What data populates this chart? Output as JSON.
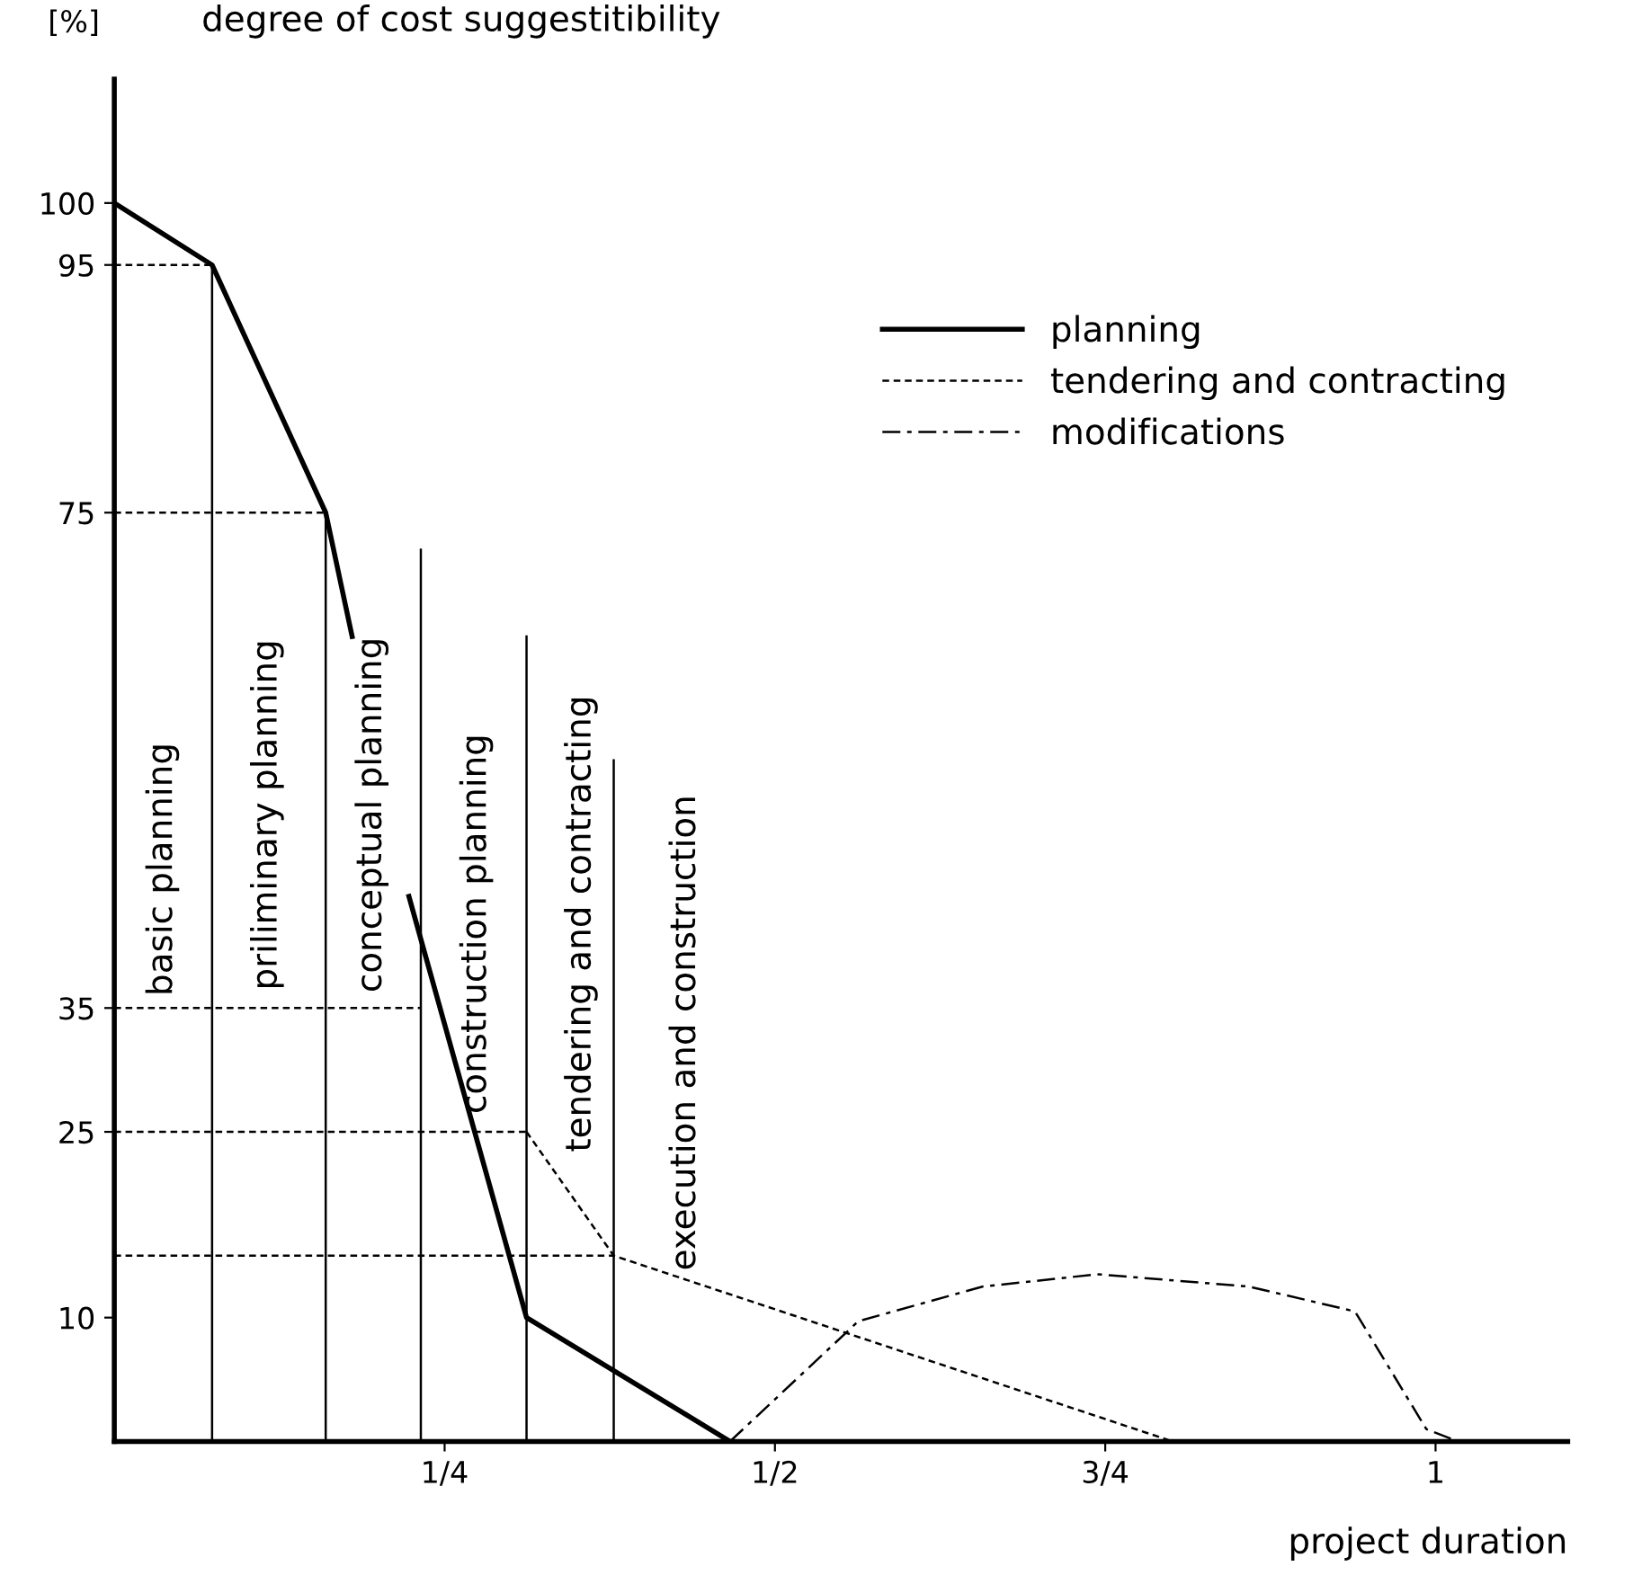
{
  "chart_data": {
    "type": "line",
    "title": "degree of cost suggestitibility",
    "ylabel": "[%]",
    "xlabel": "project duration",
    "xlim": [
      0,
      1.1
    ],
    "ylim": [
      0,
      110
    ],
    "xticks": [
      {
        "value": 0.25,
        "label": "1/4"
      },
      {
        "value": 0.5,
        "label": "1/2"
      },
      {
        "value": 0.75,
        "label": "3/4"
      },
      {
        "value": 1,
        "label": "1"
      }
    ],
    "yticks": [
      10,
      25,
      35,
      75,
      95,
      100
    ],
    "grid": false,
    "legend": "top right",
    "marker": "none",
    "series": [
      {
        "name": "planning",
        "color": "#000000",
        "line_style": "solid",
        "x": [
          0,
          0.074,
          0.16,
          0.18,
          0.2,
          0.223,
          0.312,
          0.466
        ],
        "values": [
          100,
          95,
          75,
          65,
          null,
          44,
          10,
          0
        ]
      },
      {
        "name": "tendering and contracting",
        "color": "#000000",
        "line_style": "dashed",
        "x": [
          0.312,
          0.378,
          0.801
        ],
        "values": [
          25,
          15,
          0
        ]
      },
      {
        "name": "modifications",
        "color": "#000000",
        "line_style": "dashdot",
        "x": [
          0.466,
          0.563,
          0.657,
          0.744,
          0.859,
          0.939,
          0.993,
          1.017
        ],
        "values": [
          0,
          9.7,
          12.5,
          13.5,
          12.5,
          10.5,
          1,
          0
        ]
      },
      {
        "color": "#000000",
        "line_style": "dashed",
        "x": [
          0,
          0.074
        ],
        "values": [
          95,
          95
        ]
      },
      {
        "color": "#000000",
        "line_style": "dashed",
        "x": [
          0,
          0.16
        ],
        "values": [
          75,
          75
        ]
      },
      {
        "color": "#000000",
        "line_style": "dashed",
        "x": [
          0,
          0.232
        ],
        "values": [
          35,
          35
        ]
      },
      {
        "color": "#000000",
        "line_style": "dashed",
        "x": [
          0,
          0.312
        ],
        "values": [
          25,
          25
        ]
      },
      {
        "color": "#000000",
        "line_style": "dashed",
        "x": [
          0,
          0.378
        ],
        "values": [
          15,
          15
        ]
      },
      {
        "color": "#000000",
        "line_style": "solid",
        "x": [
          0.074,
          0.074
        ],
        "values": [
          0,
          95
        ]
      },
      {
        "color": "#000000",
        "line_style": "solid",
        "x": [
          0.16,
          0.16
        ],
        "values": [
          0,
          75
        ]
      },
      {
        "color": "#000000",
        "line_style": "solid",
        "x": [
          0.232,
          0.232
        ],
        "values": [
          0,
          72
        ]
      },
      {
        "color": "#000000",
        "line_style": "solid",
        "x": [
          0.312,
          0.312
        ],
        "values": [
          0,
          65
        ]
      },
      {
        "color": "#000000",
        "line_style": "solid",
        "x": [
          0.378,
          0.378
        ],
        "values": [
          0,
          55
        ]
      }
    ],
    "annotations": [
      "basic planning",
      "priliminary planning",
      "conceptual planning",
      "construction planning",
      "tendering and contracting",
      "execution and construction"
    ]
  }
}
